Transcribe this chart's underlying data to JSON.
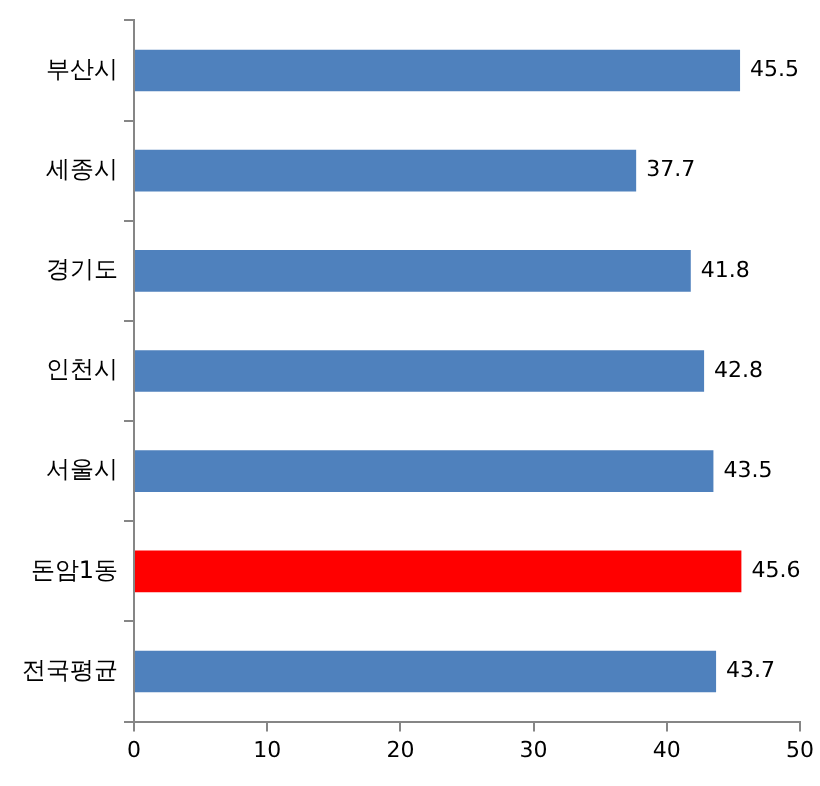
{
  "chart_data": {
    "type": "bar",
    "orientation": "horizontal",
    "categories": [
      "부산시",
      "세종시",
      "경기도",
      "인천시",
      "서울시",
      "돈암1동",
      "전국평균"
    ],
    "values": [
      45.5,
      37.7,
      41.8,
      42.8,
      43.5,
      45.6,
      43.7
    ],
    "colors": [
      "#4f81bd",
      "#4f81bd",
      "#4f81bd",
      "#4f81bd",
      "#4f81bd",
      "#ff0000",
      "#4f81bd"
    ],
    "xlim": [
      0,
      50
    ],
    "xticks": [
      0,
      10,
      20,
      30,
      40,
      50
    ],
    "data_labels": true,
    "grid": false,
    "legend": false
  }
}
